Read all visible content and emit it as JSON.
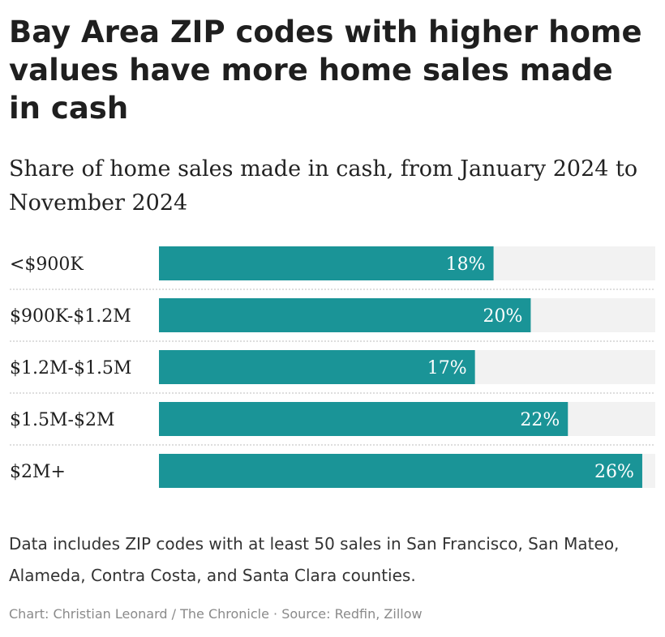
{
  "header": {
    "title": "Bay Area ZIP codes with higher home values have more home sales made in cash",
    "subtitle": "Share of home sales made in cash, from January 2024 to November 2024"
  },
  "colors": {
    "bar": "#1a9497",
    "track": "#f2f2f2",
    "separator": "#c9c9c9",
    "bar_label": "#ffffff"
  },
  "chart_data": {
    "type": "bar",
    "orientation": "horizontal",
    "categories": [
      "<$900K",
      "$900K-$1.2M",
      "$1.2M-$1.5M",
      "$1.5M-$2M",
      "$2M+"
    ],
    "values": [
      18,
      20,
      17,
      22,
      26
    ],
    "data_labels": [
      "18%",
      "20%",
      "17%",
      "22%",
      "26%"
    ],
    "unit": "%",
    "xlim": [
      0,
      26.7
    ],
    "title": "Share of home sales made in cash, from January 2024 to November 2024",
    "xlabel": "",
    "ylabel": "",
    "grid": false,
    "legend": "none"
  },
  "footer": {
    "note": "Data includes ZIP codes with at least 50 sales in San Francisco, San Mateo, Alameda, Contra Costa, and Santa Clara counties.",
    "credit": "Chart: Christian Leonard / The Chronicle · Source: Redfin, Zillow"
  }
}
